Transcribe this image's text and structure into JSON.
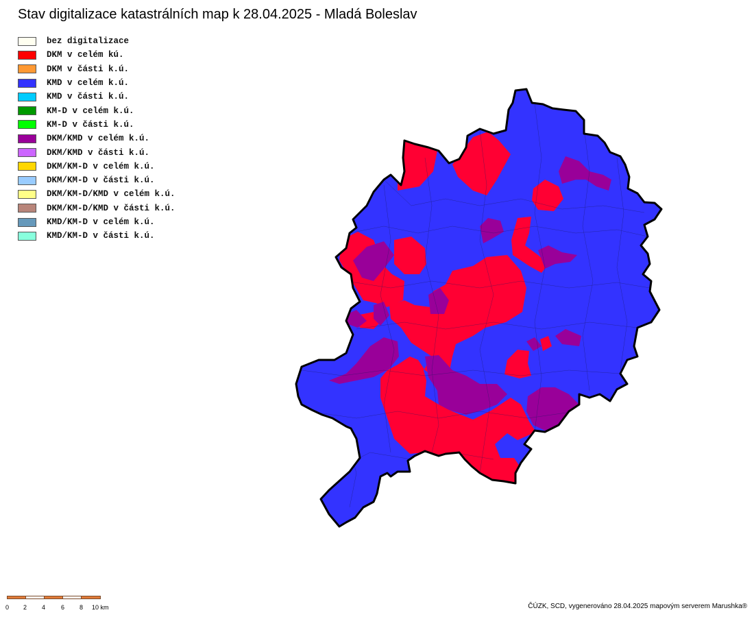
{
  "title": "Stav digitalizace katastrálních map k 28.04.2025 - Mladá Boleslav",
  "legend": [
    {
      "label": "bez digitalizace",
      "color": "#fffff0"
    },
    {
      "label": "DKM v celém kú.",
      "color": "#ff0000"
    },
    {
      "label": "DKM v části k.ú.",
      "color": "#ff9933"
    },
    {
      "label": "KMD v celém k.ú.",
      "color": "#3333ff"
    },
    {
      "label": "KMD v části k.ú.",
      "color": "#00ccff"
    },
    {
      "label": "KM-D v celém k.ú.",
      "color": "#009900"
    },
    {
      "label": "KM-D v části k.ú.",
      "color": "#00ff00"
    },
    {
      "label": "DKM/KMD v celém k.ú.",
      "color": "#990099"
    },
    {
      "label": "DKM/KMD v části k.ú.",
      "color": "#cc66ff"
    },
    {
      "label": "DKM/KM-D v celém k.ú.",
      "color": "#ffd700"
    },
    {
      "label": "DKM/KM-D v části k.ú.",
      "color": "#99ccff"
    },
    {
      "label": "DKM/KM-D/KMD v celém k.ú.",
      "color": "#ffff88"
    },
    {
      "label": "DKM/KM-D/KMD v části k.ú.",
      "color": "#b8857a"
    },
    {
      "label": "KMD/KM-D v celém k.ú.",
      "color": "#6699bb"
    },
    {
      "label": "KMD/KM-D v části k.ú.",
      "color": "#88ffdd"
    }
  ],
  "map": {
    "region_colors": {
      "kmd_full": "#3333ff",
      "dkm_full": "#ff0033",
      "dkm_kmd_full": "#990099",
      "boundary": "#000000"
    }
  },
  "scale": {
    "ticks": [
      "0",
      "2",
      "4",
      "6",
      "8",
      "10 km"
    ],
    "colors": [
      "#e07b39",
      "#ffffff"
    ]
  },
  "credit": "ČÚZK, SCD, vygenerováno 28.04.2025 mapovým serverem Marushka®"
}
